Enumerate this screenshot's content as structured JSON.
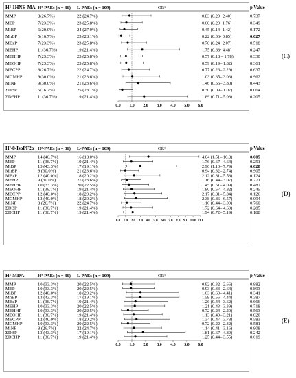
{
  "chart_data": [
    {
      "type": "forest",
      "panel_label": "(C)",
      "biomarker": "H²-1HNE-MA",
      "header": {
        "group_high": "H²-PAEs (n = 36)",
        "group_low": "L-PAEs (n = 109)",
        "effect": "OR¹",
        "p": "p Value"
      },
      "x_ticks": [
        "0.0",
        "1.0",
        "2.0",
        "3.0",
        "4.0",
        "5.0",
        "6.0"
      ],
      "xlim": [
        0,
        6
      ],
      "reference_line": 1,
      "rows": [
        {
          "name": "MMP",
          "high": "8(26.7%)",
          "low": "22 (24.7%)",
          "or": 0.83,
          "lo": 0.29,
          "hi": 2.4,
          "ci_text": "0.83 (0.29- 2.40)",
          "p": "0.737",
          "p_bold": false
        },
        {
          "name": "MEP",
          "high": "7(23.3%)",
          "low": "23 (25.8%)",
          "or": 0.6,
          "lo": 0.2,
          "hi": 1.76,
          "ci_text": "0.60 (0.20- 1.76)",
          "p": "0.349",
          "p_bold": false
        },
        {
          "name": "MiBP",
          "high": "6(20.0%)",
          "low": "24 (27.0%)",
          "or": 0.45,
          "lo": 0.14,
          "hi": 1.42,
          "ci_text": "0.45 (0.14- 1.42)",
          "p": "0.172",
          "p_bold": false
        },
        {
          "name": "MnBP",
          "high": "5(16.7%)",
          "low": "25 (28.1%)",
          "or": 0.22,
          "lo": 0.06,
          "hi": 0.85,
          "ci_text": "0.22 (0.06- 0.85)",
          "p": "0.027",
          "p_bold": true
        },
        {
          "name": "MBzP",
          "high": "7(23.3%)",
          "low": "23 (25.8%)",
          "or": 0.7,
          "lo": 0.24,
          "hi": 2.07,
          "ci_text": "0.70 (0.24- 2.07)",
          "p": "0.518",
          "p_bold": false
        },
        {
          "name": "MEHP",
          "high": "11(36.7%)",
          "low": "19 (21.4%)",
          "or": 1.75,
          "lo": 0.68,
          "hi": 4.48,
          "ci_text": "1.75 (0.68- 4.48)",
          "p": "0.247",
          "p_bold": false
        },
        {
          "name": "MEHHP",
          "high": "7(23.3%)",
          "low": "23 (25.8%)",
          "or": 0.57,
          "lo": 0.18,
          "hi": 1.78,
          "ci_text": "0.57 (0.18 – 1.78)",
          "p": "0.330",
          "p_bold": false
        },
        {
          "name": "MEOHP",
          "high": "7(23.3%)",
          "low": "23 (25.8%)",
          "or": 0.59,
          "lo": 0.19,
          "hi": 1.82,
          "ci_text": "0.59 (0.19– 1.82)",
          "p": "0.361",
          "p_bold": false
        },
        {
          "name": "MECPP",
          "high": "8(26.7%)",
          "low": "22 (24.7%)",
          "or": 0.77,
          "lo": 0.26,
          "hi": 2.29,
          "ci_text": "0.77 (0.26– 2.29)",
          "p": "0.637",
          "p_bold": false
        },
        {
          "name": "MCMHP",
          "high": "9(30.0%)",
          "low": "21 (23.6%)",
          "or": 1.03,
          "lo": 0.35,
          "hi": 3.03,
          "ci_text": "1.03 (0.35– 3.03)",
          "p": "0.962",
          "p_bold": false
        },
        {
          "name": "MiNP",
          "high": "9(30.0%)",
          "low": "21 (23.6%)",
          "or": 1.46,
          "lo": 0.56,
          "hi": 3.8,
          "ci_text": "1.46 (0.56– 3.80)",
          "p": "0.443",
          "p_bold": false
        },
        {
          "name": "ΣDBP",
          "high": "5(16.7%)",
          "low": "25 (28.1%)",
          "or": 0.3,
          "lo": 0.09,
          "hi": 1.07,
          "ci_text": "0.30 (0.09– 1.07)",
          "p": "0.064",
          "p_bold": false
        },
        {
          "name": "ΣDEHP",
          "high": "11(36.7%)",
          "low": "19 (21.4%)",
          "or": 1.89,
          "lo": 0.71,
          "hi": 5.08,
          "ci_text": "1.89 (0.71– 5.08)",
          "p": "0.205",
          "p_bold": false
        }
      ]
    },
    {
      "type": "forest",
      "panel_label": "(D)",
      "biomarker": "H²-8-IsoPF2α",
      "header": {
        "group_high": "H²-PAEs (n = 36)",
        "group_low": "L-PAEs (n = 109)",
        "effect": "OR¹",
        "p": "p Value"
      },
      "x_ticks": [
        "0.0",
        "1.0",
        "2.0",
        "3.0",
        "4.0",
        "5.0",
        "6.0",
        "7.0",
        "8.0",
        "9.0",
        "10.0",
        "11.0"
      ],
      "xlim": [
        0,
        11
      ],
      "reference_line": 1,
      "rows": [
        {
          "name": "MMP",
          "high": "14 (46.7%)",
          "low": "16 (18.0%)",
          "or": 4.04,
          "lo": 1.51,
          "hi": 10.8,
          "ci_text": "4.04 (1.51– 10.8)",
          "p": "0.005",
          "p_bold": true
        },
        {
          "name": "MEP",
          "high": "11 (36.7%)",
          "low": "19 (21.4%)",
          "or": 1.76,
          "lo": 0.67,
          "hi": 4.64,
          "ci_text": "1.76 (0.67– 4.64)",
          "p": "0.251",
          "p_bold": false
        },
        {
          "name": "MiBP",
          "high": "13 (43.3%)",
          "low": "17 (19.1%)",
          "or": 2.96,
          "lo": 1.13,
          "hi": 7.79,
          "ci_text": "2.96 (1.13– 7.79)",
          "p": "0.028",
          "p_bold": true
        },
        {
          "name": "MnBP",
          "high": "9 (30.0%)",
          "low": "21 (23.6%)",
          "or": 0.94,
          "lo": 0.32,
          "hi": 2.74,
          "ci_text": "0.94 (0.32– 2.74)",
          "p": "0.905",
          "p_bold": false
        },
        {
          "name": "MBzP",
          "high": "12 (40.0%)",
          "low": "18 (20.2%)",
          "or": 2.12,
          "lo": 0.81,
          "hi": 5.58,
          "ci_text": "2.12 (0.81– 5.58)",
          "p": "0.124",
          "p_bold": false
        },
        {
          "name": "MEHP",
          "high": "9 (30.0%)",
          "low": "21 (23.6%)",
          "or": 1.16,
          "lo": 0.44,
          "hi": 3.07,
          "ci_text": "1.16 (0.44– 3.07)",
          "p": "0.771",
          "p_bold": false
        },
        {
          "name": "MEHHP",
          "high": "10 (33.3%)",
          "low": "20 (22.5%)",
          "or": 1.45,
          "lo": 0.51,
          "hi": 4.09,
          "ci_text": "1.45 (0.51– 4.09)",
          "p": "0.487",
          "p_bold": false
        },
        {
          "name": "MEOHP",
          "high": "11 (36.7%)",
          "low": "19 (21.4%)",
          "or": 1.8,
          "lo": 0.67,
          "hi": 4.82,
          "ci_text": "1.80 (0.67– 4.82)",
          "p": "0.245",
          "p_bold": false
        },
        {
          "name": "MECPP",
          "high": "12 (40.0%)",
          "low": "18 (20.2%)",
          "or": 2.17,
          "lo": 0.81,
          "hi": 5.84,
          "ci_text": "2.17 (0.81– 5.84)",
          "p": "0.126",
          "p_bold": false
        },
        {
          "name": "MCMHP",
          "high": "12 (40.0%)",
          "low": "18 (20.2%)",
          "or": 2.38,
          "lo": 0.86,
          "hi": 6.57,
          "ci_text": "2.38 (0.86– 6.57)",
          "p": "0.094",
          "p_bold": false
        },
        {
          "name": "MiNP",
          "high": "8 (26.7%)",
          "low": "22 (24.7%)",
          "or": 1.16,
          "lo": 0.44,
          "hi": 3.09,
          "ci_text": "1.16 (0.44– 3.09)",
          "p": "0.760",
          "p_bold": false
        },
        {
          "name": "ΣDBP",
          "high": "11 (36.7%)",
          "low": "19 (21.4%)",
          "or": 1.72,
          "lo": 0.64,
          "hi": 4.63,
          "ci_text": "1.72 (0.64– 4.63)",
          "p": "0.285",
          "p_bold": false
        },
        {
          "name": "ΣDEHP",
          "high": "11 (36.7%)",
          "low": "19 (21.4%)",
          "or": 1.94,
          "lo": 0.72,
          "hi": 5.19,
          "ci_text": "1.94 (0.72– 5.19)",
          "p": "0.188",
          "p_bold": false
        }
      ]
    },
    {
      "type": "forest",
      "panel_label": "(E)",
      "biomarker": "H²-MDA",
      "header": {
        "group_high": "H²-PAEs (n = 36)",
        "group_low": "L-PAEs (n = 109)",
        "effect": "OR¹",
        "p": "p Value"
      },
      "x_ticks": [
        "0.0",
        "1.0",
        "2.0",
        "3.0",
        "4.0",
        "5.0",
        "6.0"
      ],
      "xlim": [
        0,
        6
      ],
      "reference_line": 1,
      "rows": [
        {
          "name": "MMP",
          "high": "10 (33.3%)",
          "low": "20 (22.5%)",
          "or": 0.92,
          "lo": 0.32,
          "hi": 2.66,
          "ci_text": "0.92 (0.32– 2.66)",
          "p": "0.882",
          "p_bold": false
        },
        {
          "name": "MEP",
          "high": "10 (33.3%)",
          "low": "20 (22.5%)",
          "or": 0.93,
          "lo": 0.33,
          "hi": 2.64,
          "ci_text": "0.93 (0.33– 2.64)",
          "p": "0.893",
          "p_bold": false
        },
        {
          "name": "MiBP",
          "high": "12 (40.0%)",
          "low": "18 (20.2%)",
          "or": 1.63,
          "lo": 0.6,
          "hi": 4.41,
          "ci_text": "1.63 (0.60– 4.41)",
          "p": "0.341",
          "p_bold": false
        },
        {
          "name": "MnBP",
          "high": "13 (43.3%)",
          "low": "17 (19.1%)",
          "or": 1.58,
          "lo": 0.56,
          "hi": 4.44,
          "ci_text": "1.58 (0.56– 4.44)",
          "p": "0.387",
          "p_bold": false
        },
        {
          "name": "MBzP",
          "high": "11 (36.7%)",
          "low": "19 (21.4%)",
          "or": 1.26,
          "lo": 0.44,
          "hi": 3.62,
          "ci_text": "1.26 (0.44– 3.62)",
          "p": "0.666",
          "p_bold": false
        },
        {
          "name": "MEHP",
          "high": "10 (33.3%)",
          "low": "20 (22.5%)",
          "or": 1.21,
          "lo": 0.43,
          "hi": 3.39,
          "ci_text": "1.21 (0.43– 3.39)",
          "p": "0.718",
          "p_bold": false
        },
        {
          "name": "MEHHP",
          "high": "10 (33.3%)",
          "low": "20 (22.5%)",
          "or": 0.72,
          "lo": 0.24,
          "hi": 2.2,
          "ci_text": "0.72 (0.24– 2.20)",
          "p": "0.563",
          "p_bold": false
        },
        {
          "name": "MEOHP",
          "high": "11 (36.7%)",
          "low": "19 (21.4%)",
          "or": 1.13,
          "lo": 0.4,
          "hi": 3.21,
          "ci_text": "1.13 (0.40– 3.21)",
          "p": "0.820",
          "p_bold": false
        },
        {
          "name": "MECPP",
          "high": "12 (40.0%)",
          "low": "18 (20.2%)",
          "or": 1.34,
          "lo": 0.47,
          "hi": 3.78,
          "ci_text": "1.34 (0.47– 3.78)",
          "p": "0.583",
          "p_bold": false
        },
        {
          "name": "MCMHP",
          "high": "10 (33.3%)",
          "low": "20 (22.5%)",
          "or": 0.72,
          "lo": 0.22,
          "hi": 2.32,
          "ci_text": "0.72 (0.22– 2.32)",
          "p": "0.581",
          "p_bold": false
        },
        {
          "name": "MiNP",
          "high": "8 (26.7%)",
          "low": "22 (24.7%)",
          "or": 1.14,
          "lo": 0.41,
          "hi": 3.16,
          "ci_text": "1.14 (0.41– 3.16)",
          "p": "0.808",
          "p_bold": false
        },
        {
          "name": "ΣDBP",
          "high": "13 (43.3%)",
          "low": "17 (19.1%)",
          "or": 1.81,
          "lo": 0.67,
          "hi": 4.89,
          "ci_text": "1.81 (0.67– 4.89)",
          "p": "0.242",
          "p_bold": false
        },
        {
          "name": "ΣDEHP",
          "high": "11 (36.7%)",
          "low": "19 (21.4%)",
          "or": 1.25,
          "lo": 0.44,
          "hi": 3.55,
          "ci_text": "1.25 (0.44– 3.55)",
          "p": "0.619",
          "p_bold": false
        }
      ]
    }
  ]
}
